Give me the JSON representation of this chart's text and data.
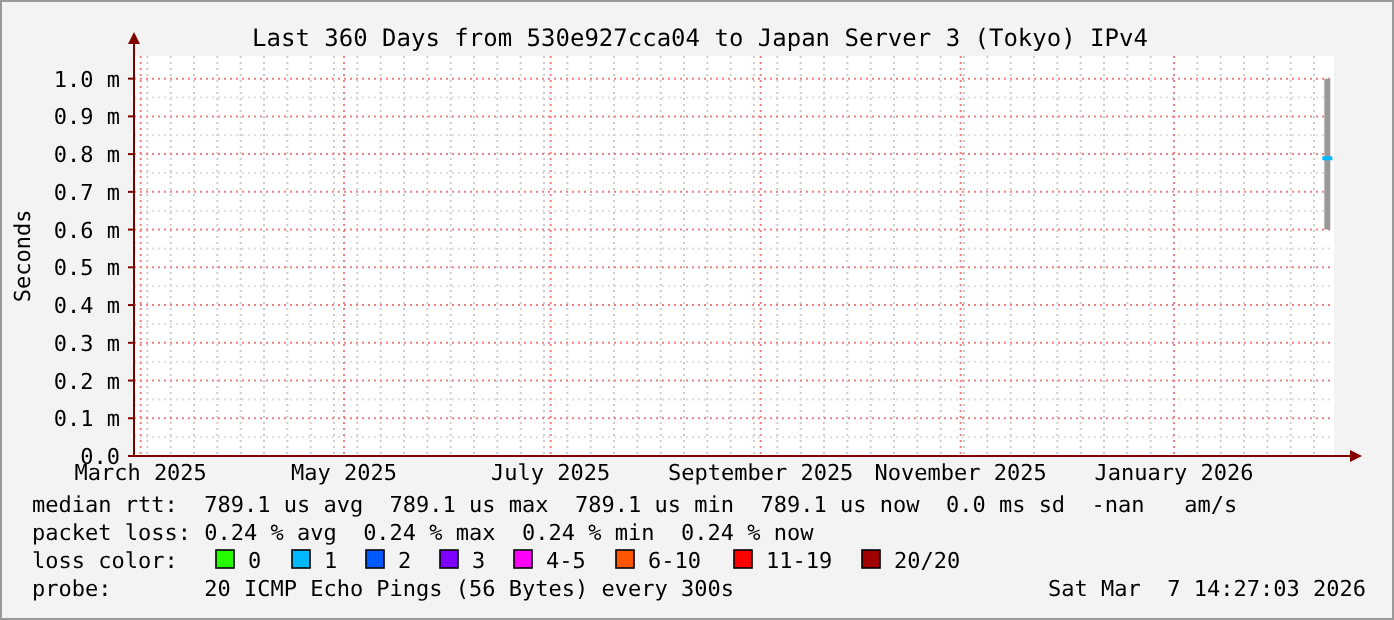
{
  "chart_data": {
    "type": "line",
    "title": "Last 360 Days from 530e927cca04 to Japan Server 3 (Tokyo) IPv4",
    "ylabel": "Seconds",
    "xlim": [
      "2025-03-12",
      "2026-03-07"
    ],
    "xticks": [
      {
        "value": "2025-03-14",
        "label": "March 2025"
      },
      {
        "value": "2025-05-14",
        "label": "May 2025"
      },
      {
        "value": "2025-07-15",
        "label": "July 2025"
      },
      {
        "value": "2025-09-16",
        "label": "September 2025"
      },
      {
        "value": "2025-11-15",
        "label": "November 2025"
      },
      {
        "value": "2026-01-18",
        "label": "January 2026"
      }
    ],
    "ylim": [
      0,
      1.06
    ],
    "yticks": [
      {
        "value": 0,
        "label": "0.0"
      },
      {
        "value": 0.1,
        "label": "0.1 m"
      },
      {
        "value": 0.2,
        "label": "0.2 m"
      },
      {
        "value": 0.3,
        "label": "0.3 m"
      },
      {
        "value": 0.4,
        "label": "0.4 m"
      },
      {
        "value": 0.5,
        "label": "0.5 m"
      },
      {
        "value": 0.6,
        "label": "0.6 m"
      },
      {
        "value": 0.7,
        "label": "0.7 m"
      },
      {
        "value": 0.8,
        "label": "0.8 m"
      },
      {
        "value": 0.9,
        "label": "0.9 m"
      },
      {
        "value": 1.0,
        "label": "1.0 m"
      }
    ],
    "grid": true,
    "legend": "bottom",
    "legend_title": "loss color:",
    "series": [
      {
        "color": "#00b8ff",
        "x": [
          "2026-03-05"
        ],
        "values": [
          0.789
        ],
        "errors": [
          [
            0.6,
            1.0
          ]
        ],
        "marker": "square"
      },
      {
        "name": "0",
        "color": "#26ff00"
      },
      {
        "name": "1",
        "color": "#00b8ff"
      },
      {
        "name": "2",
        "color": "#0059ff"
      },
      {
        "name": "3",
        "color": "#7e00ff"
      },
      {
        "name": "4-5",
        "color": "#ff00ff"
      },
      {
        "name": "6-10",
        "color": "#ff5500"
      },
      {
        "name": "11-19",
        "color": "#ff0000"
      },
      {
        "name": "20/20",
        "color": "#a10000"
      }
    ],
    "annotations": [
      "median rtt:  789.1 us avg  789.1 us max  789.1 us min  789.1 us now  0.0 ms sd  -nan   am/s",
      "packet loss: 0.24 % avg  0.24 % max  0.24 % min  0.24 % now",
      "probe:       20 ICMP Echo Pings (56 Bytes) every 300s",
      "Sat Mar  7 14:27:03 2026"
    ]
  }
}
